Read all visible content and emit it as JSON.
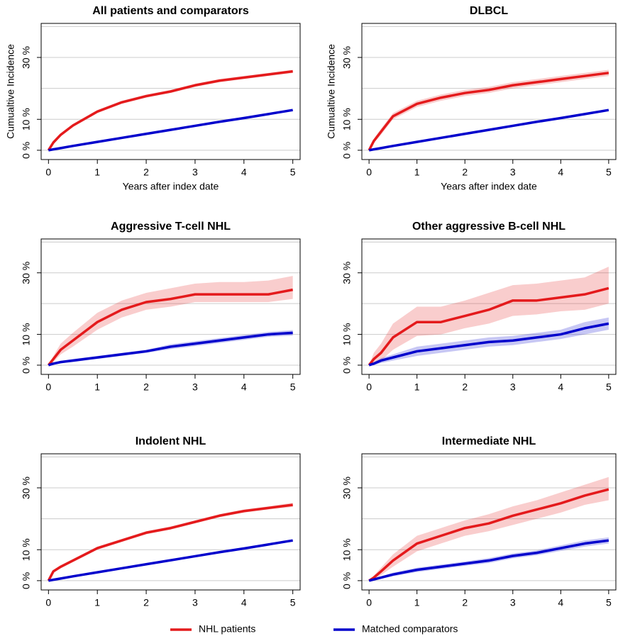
{
  "chart_data": [
    {
      "type": "line",
      "title": "All patients and comparators",
      "ylabel": "Cumualtive Incidence",
      "xlabel": "Years after index date",
      "x": [
        0,
        0.1,
        0.25,
        0.5,
        1,
        1.5,
        2,
        2.5,
        3,
        3.5,
        4,
        4.5,
        5
      ],
      "series": [
        {
          "name": "NHL patients",
          "color": "#e41a1c",
          "values": [
            0,
            2.5,
            5,
            8,
            12.5,
            15.5,
            17.5,
            19,
            21,
            22.5,
            23.5,
            24.5,
            25.5
          ],
          "lower": [
            0,
            2,
            4.5,
            7.5,
            12,
            15,
            17,
            18.5,
            20.5,
            22,
            23,
            24,
            25
          ],
          "upper": [
            0,
            3,
            5.5,
            8.5,
            13,
            16,
            18,
            19.5,
            21.5,
            23,
            24,
            25,
            26
          ]
        },
        {
          "name": "Matched comparators",
          "color": "#0000cc",
          "values": [
            0,
            0.3,
            0.7,
            1.4,
            2.7,
            4,
            5.3,
            6.6,
            7.9,
            9.2,
            10.4,
            11.7,
            13
          ]
        }
      ],
      "xlim": [
        -0.15,
        5.15
      ],
      "xticks": [
        0,
        1,
        2,
        3,
        4,
        5
      ],
      "ylim": [
        -3,
        41
      ],
      "yticks": [
        {
          "value": 0,
          "label": "0 %"
        },
        {
          "value": 10,
          "label": "10 %"
        },
        {
          "value": 30,
          "label": "30 %"
        }
      ],
      "gridlines": [
        0,
        10,
        20,
        30,
        40
      ]
    },
    {
      "type": "line",
      "title": "DLBCL",
      "ylabel": "Cumualtive Incidence",
      "xlabel": "Years after index date",
      "x": [
        0,
        0.1,
        0.25,
        0.5,
        1,
        1.5,
        2,
        2.5,
        3,
        3.5,
        4,
        4.5,
        5
      ],
      "series": [
        {
          "name": "NHL patients",
          "color": "#e41a1c",
          "values": [
            0,
            3,
            6,
            11,
            15,
            17,
            18.5,
            19.5,
            21,
            22,
            23,
            24,
            25
          ],
          "lower": [
            0,
            2.3,
            5,
            10,
            14,
            16,
            17.5,
            18.5,
            20,
            21,
            22,
            23,
            24
          ],
          "upper": [
            0,
            3.7,
            7,
            12,
            16,
            18,
            19.5,
            20.5,
            22,
            23,
            24,
            25,
            26
          ]
        },
        {
          "name": "Matched comparators",
          "color": "#0000cc",
          "values": [
            0,
            0.3,
            0.7,
            1.4,
            2.7,
            4,
            5.3,
            6.6,
            7.9,
            9.2,
            10.4,
            11.7,
            13
          ]
        }
      ],
      "xlim": [
        -0.15,
        5.15
      ],
      "xticks": [
        0,
        1,
        2,
        3,
        4,
        5
      ],
      "ylim": [
        -3,
        41
      ],
      "yticks": [
        {
          "value": 0,
          "label": "0 %"
        },
        {
          "value": 10,
          "label": "10 %"
        },
        {
          "value": 30,
          "label": "30 %"
        }
      ],
      "gridlines": [
        0,
        10,
        20,
        30,
        40
      ]
    },
    {
      "type": "line",
      "title": "Aggressive T-cell NHL",
      "x": [
        0,
        0.1,
        0.25,
        0.5,
        1,
        1.5,
        2,
        2.5,
        3,
        3.5,
        4,
        4.5,
        5
      ],
      "series": [
        {
          "name": "NHL patients",
          "color": "#e41a1c",
          "values": [
            0,
            2,
            5,
            8,
            14,
            18,
            20.5,
            21.5,
            23,
            23,
            23,
            23,
            24.5
          ],
          "lower": [
            0,
            1,
            3.5,
            6,
            11.5,
            15.5,
            18,
            19,
            20.5,
            20.5,
            20.5,
            20.5,
            21.5
          ],
          "upper": [
            0,
            3,
            7,
            10.5,
            17,
            21,
            23.5,
            25,
            26.5,
            27,
            27,
            27.5,
            29
          ]
        },
        {
          "name": "Matched comparators",
          "color": "#0000cc",
          "values": [
            0,
            0.5,
            1,
            1.5,
            2.5,
            3.5,
            4.5,
            6,
            7,
            8,
            9,
            10,
            10.5
          ],
          "lower": [
            0,
            0.2,
            0.6,
            1,
            2,
            3,
            4,
            5.2,
            6.2,
            7.2,
            8.2,
            9.2,
            9.6
          ],
          "upper": [
            0,
            0.8,
            1.4,
            2,
            3,
            4,
            5,
            6.8,
            7.8,
            8.8,
            9.8,
            10.8,
            11.4
          ]
        }
      ],
      "xlim": [
        -0.15,
        5.15
      ],
      "xticks": [
        0,
        1,
        2,
        3,
        4,
        5
      ],
      "ylim": [
        -3,
        41
      ],
      "yticks": [
        {
          "value": 0,
          "label": "0 %"
        },
        {
          "value": 10,
          "label": "10 %"
        },
        {
          "value": 30,
          "label": "30 %"
        }
      ],
      "gridlines": [
        0,
        10,
        20,
        30,
        40
      ]
    },
    {
      "type": "line",
      "title": "Other aggressive B-cell NHL",
      "x": [
        0,
        0.1,
        0.25,
        0.5,
        1,
        1.5,
        2,
        2.5,
        3,
        3.5,
        4,
        4.5,
        5
      ],
      "series": [
        {
          "name": "NHL patients",
          "color": "#e41a1c",
          "values": [
            0,
            2,
            4,
            9,
            14,
            14,
            16,
            18,
            21,
            21,
            22,
            23,
            25
          ],
          "lower": [
            0,
            0.5,
            1.5,
            5,
            9.5,
            10,
            12,
            13.5,
            16,
            16.5,
            17.5,
            18,
            20
          ],
          "upper": [
            0,
            4,
            7,
            13.5,
            19,
            19,
            21,
            23.5,
            26,
            26.5,
            27.5,
            28.5,
            32
          ]
        },
        {
          "name": "Matched comparators",
          "color": "#0000cc",
          "values": [
            0,
            0.5,
            1.5,
            2.5,
            4.5,
            5.5,
            6.5,
            7.5,
            8,
            9,
            10,
            12,
            13.5
          ],
          "lower": [
            0,
            0,
            0.7,
            1.5,
            3,
            4,
            5,
            6,
            6.5,
            7.5,
            8.5,
            10,
            11.5
          ],
          "upper": [
            0,
            1,
            2.3,
            3.5,
            6,
            7,
            8,
            9,
            9.5,
            10.5,
            11.5,
            14,
            15.5
          ]
        }
      ],
      "xlim": [
        -0.15,
        5.15
      ],
      "xticks": [
        0,
        1,
        2,
        3,
        4,
        5
      ],
      "ylim": [
        -3,
        41
      ],
      "yticks": [
        {
          "value": 0,
          "label": "0 %"
        },
        {
          "value": 10,
          "label": "10 %"
        },
        {
          "value": 30,
          "label": "30 %"
        }
      ],
      "gridlines": [
        0,
        10,
        20,
        30,
        40
      ]
    },
    {
      "type": "line",
      "title": "Indolent NHL",
      "x": [
        0,
        0.1,
        0.25,
        0.5,
        1,
        1.5,
        2,
        2.5,
        3,
        3.5,
        4,
        4.5,
        5
      ],
      "series": [
        {
          "name": "NHL patients",
          "color": "#e41a1c",
          "values": [
            0,
            3,
            4.5,
            6.5,
            10.5,
            13,
            15.5,
            17,
            19,
            21,
            22.5,
            23.5,
            24.5
          ],
          "lower": [
            0,
            2.5,
            4,
            6,
            10,
            12.5,
            15,
            16.5,
            18.5,
            20.5,
            22,
            23,
            23.8
          ],
          "upper": [
            0,
            3.5,
            5,
            7,
            11,
            13.5,
            16,
            17.5,
            19.5,
            21.5,
            23,
            24,
            25.2
          ]
        },
        {
          "name": "Matched comparators",
          "color": "#0000cc",
          "values": [
            0,
            0.3,
            0.7,
            1.4,
            2.7,
            4,
            5.3,
            6.6,
            7.9,
            9.2,
            10.4,
            11.7,
            13
          ]
        }
      ],
      "xlim": [
        -0.15,
        5.15
      ],
      "xticks": [
        0,
        1,
        2,
        3,
        4,
        5
      ],
      "ylim": [
        -3,
        41
      ],
      "yticks": [
        {
          "value": 0,
          "label": "0 %"
        },
        {
          "value": 10,
          "label": "10 %"
        },
        {
          "value": 30,
          "label": "30 %"
        }
      ],
      "gridlines": [
        0,
        10,
        20,
        30,
        40
      ]
    },
    {
      "type": "line",
      "title": "Intermediate NHL",
      "x": [
        0,
        0.1,
        0.25,
        0.5,
        1,
        1.5,
        2,
        2.5,
        3,
        3.5,
        4,
        4.5,
        5
      ],
      "series": [
        {
          "name": "NHL patients",
          "color": "#e41a1c",
          "values": [
            0,
            1,
            3,
            6.5,
            12,
            14.5,
            17,
            18.5,
            21,
            23,
            25,
            27.5,
            29.5
          ],
          "lower": [
            0,
            0.3,
            1.8,
            4.5,
            9.5,
            12,
            14.5,
            16,
            18,
            20,
            22,
            24.5,
            26
          ],
          "upper": [
            0,
            1.7,
            4.2,
            8.5,
            14.5,
            17,
            19.5,
            21.5,
            24,
            26,
            28.5,
            31,
            33.5
          ]
        },
        {
          "name": "Matched comparators",
          "color": "#0000cc",
          "values": [
            0,
            0.4,
            1,
            2,
            3.5,
            4.5,
            5.5,
            6.5,
            8,
            9,
            10.5,
            12,
            13
          ],
          "lower": [
            0,
            0.1,
            0.6,
            1.4,
            2.8,
            3.8,
            4.8,
            5.7,
            7.2,
            8.2,
            9.6,
            11,
            12
          ],
          "upper": [
            0,
            0.7,
            1.4,
            2.6,
            4.2,
            5.2,
            6.2,
            7.3,
            8.8,
            9.8,
            11.4,
            13,
            14
          ]
        }
      ],
      "xlim": [
        -0.15,
        5.15
      ],
      "xticks": [
        0,
        1,
        2,
        3,
        4,
        5
      ],
      "ylim": [
        -3,
        41
      ],
      "yticks": [
        {
          "value": 0,
          "label": "0 %"
        },
        {
          "value": 10,
          "label": "10 %"
        },
        {
          "value": 30,
          "label": "30 %"
        }
      ],
      "gridlines": [
        0,
        10,
        20,
        30,
        40
      ]
    }
  ]
}
